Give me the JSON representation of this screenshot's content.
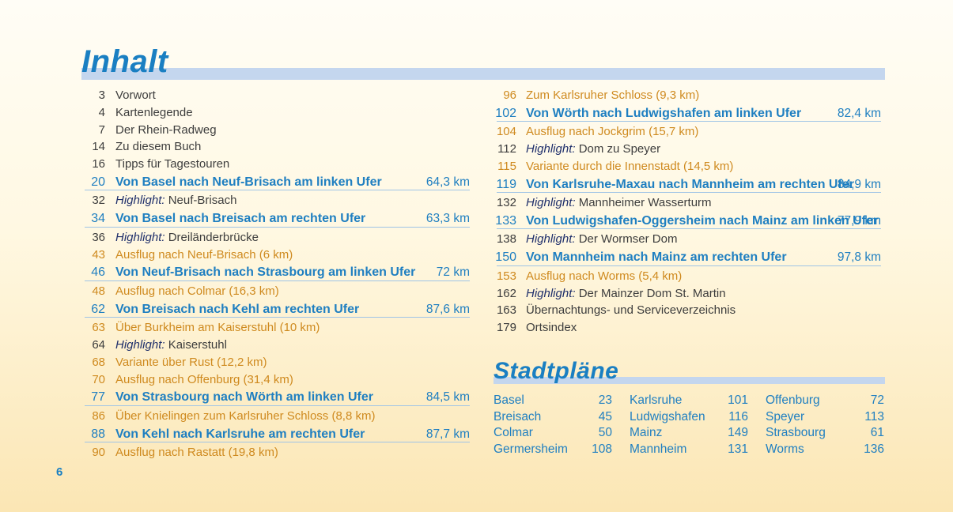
{
  "headings": {
    "contents": "Inhalt",
    "city_maps": "Stadtpläne"
  },
  "page_number": "6",
  "toc_left": [
    {
      "page": "3",
      "type": "plain",
      "text": "Vorwort"
    },
    {
      "page": "4",
      "type": "plain",
      "text": "Kartenlegende"
    },
    {
      "page": "7",
      "type": "plain",
      "text": "Der Rhein-Radweg"
    },
    {
      "page": "14",
      "type": "plain",
      "text": "Zu diesem Buch"
    },
    {
      "page": "16",
      "type": "plain",
      "text": "Tipps für Tagestouren"
    },
    {
      "page": "20",
      "type": "route",
      "text": "Von Basel nach Neuf-Brisach am linken Ufer",
      "km": "64,3 km"
    },
    {
      "page": "32",
      "type": "highlight",
      "label": "Highlight:",
      "text": " Neuf-Brisach"
    },
    {
      "page": "34",
      "type": "route",
      "text": "Von Basel nach Breisach am rechten Ufer",
      "km": "63,3 km"
    },
    {
      "page": "36",
      "type": "highlight",
      "label": "Highlight:",
      "text": " Dreiländerbrücke"
    },
    {
      "page": "43",
      "type": "excursion",
      "text": "Ausflug nach Neuf-Brisach (6 km)"
    },
    {
      "page": "46",
      "type": "route",
      "text": "Von Neuf-Brisach nach Strasbourg am linken Ufer",
      "km": "72 km"
    },
    {
      "page": "48",
      "type": "excursion",
      "text": "Ausflug nach Colmar (16,3 km)"
    },
    {
      "page": "62",
      "type": "route",
      "text": "Von Breisach nach Kehl am rechten Ufer",
      "km": "87,6 km"
    },
    {
      "page": "63",
      "type": "excursion",
      "text": "Über Burkheim am Kaiserstuhl (10 km)"
    },
    {
      "page": "64",
      "type": "highlight",
      "label": "Highlight:",
      "text": " Kaiserstuhl"
    },
    {
      "page": "68",
      "type": "excursion",
      "text": "Variante über Rust (12,2 km)"
    },
    {
      "page": "70",
      "type": "excursion",
      "text": "Ausflug nach Offenburg (31,4 km)"
    },
    {
      "page": "77",
      "type": "route",
      "text": "Von Strasbourg nach Wörth am linken Ufer",
      "km": "84,5 km"
    },
    {
      "page": "86",
      "type": "excursion",
      "text": "Über Knielingen zum Karlsruher Schloss (8,8 km)"
    },
    {
      "page": "88",
      "type": "route",
      "text": "Von Kehl nach Karlsruhe am rechten Ufer",
      "km": "87,7 km"
    },
    {
      "page": "90",
      "type": "excursion",
      "text": "Ausflug nach Rastatt (19,8 km)"
    }
  ],
  "toc_right": [
    {
      "page": "96",
      "type": "excursion",
      "text": "Zum Karlsruher Schloss (9,3 km)"
    },
    {
      "page": "102",
      "type": "route",
      "text": "Von Wörth nach Ludwigshafen am linken Ufer",
      "km": "82,4 km"
    },
    {
      "page": "104",
      "type": "excursion",
      "text": "Ausflug nach Jockgrim (15,7 km)"
    },
    {
      "page": "112",
      "type": "highlight",
      "label": "Highlight:",
      "text": " Dom zu Speyer"
    },
    {
      "page": "115",
      "type": "excursion",
      "text": "Variante durch die Innenstadt (14,5 km)"
    },
    {
      "page": "119",
      "type": "route",
      "text": "Von Karlsruhe-Maxau nach Mannheim am rechten Ufer",
      "km": "84,9 km"
    },
    {
      "page": "132",
      "type": "highlight",
      "label": "Highlight:",
      "text": " Mannheimer Wasserturm"
    },
    {
      "page": "133",
      "type": "route",
      "text": "Von Ludwigshafen-Oggersheim nach Mainz am linken Ufer",
      "km": "77,9 km"
    },
    {
      "page": "138",
      "type": "highlight",
      "label": "Highlight:",
      "text": " Der Wormser Dom"
    },
    {
      "page": "150",
      "type": "route",
      "text": "Von Mannheim nach Mainz am rechten Ufer",
      "km": "97,8 km"
    },
    {
      "page": "153",
      "type": "excursion",
      "text": "Ausflug nach Worms (5,4 km)"
    },
    {
      "page": "162",
      "type": "highlight",
      "label": "Highlight:",
      "text": " Der Mainzer Dom St. Martin"
    },
    {
      "page": "163",
      "type": "plain",
      "text": "Übernachtungs- und Serviceverzeichnis"
    },
    {
      "page": "179",
      "type": "plain",
      "text": "Ortsindex"
    }
  ],
  "city_maps": [
    [
      {
        "city": "Basel",
        "page": "23"
      },
      {
        "city": "Breisach",
        "page": "45"
      },
      {
        "city": "Colmar",
        "page": "50"
      },
      {
        "city": "Germersheim",
        "page": "108"
      }
    ],
    [
      {
        "city": "Karlsruhe",
        "page": "101"
      },
      {
        "city": "Ludwigshafen",
        "page": "116"
      },
      {
        "city": "Mainz",
        "page": "149"
      },
      {
        "city": "Mannheim",
        "page": "131"
      }
    ],
    [
      {
        "city": "Offenburg",
        "page": "72"
      },
      {
        "city": "Speyer",
        "page": "113"
      },
      {
        "city": "Strasbourg",
        "page": "61"
      },
      {
        "city": "Worms",
        "page": "136"
      }
    ]
  ],
  "colors": {
    "heading_blue": "#1a7fc2",
    "route_blue": "#1f7fc1",
    "excursion_orange": "#cf8a1f",
    "highlight_navy": "#1f2f6b",
    "heading_bar": "#c4d6ee"
  }
}
